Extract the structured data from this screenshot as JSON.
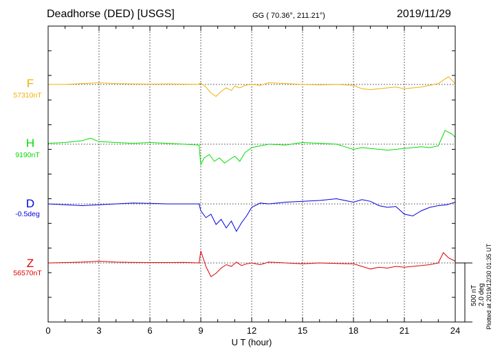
{
  "header": {
    "station": "Deadhorse (DED)  [USGS]",
    "coords": "GG ( 70.36°, 211.21°)",
    "date": "2019/11/29"
  },
  "footer_note": "Plotted at 2019/12/30 01:35 UT",
  "scale": {
    "nt": "500 nT",
    "deg": "2.0 deg"
  },
  "colors": {
    "F": "#f0b000",
    "H": "#00dd00",
    "D": "#0000dd",
    "Z": "#dd0000"
  },
  "chart_data": {
    "type": "line",
    "xlabel": "U T (hour)",
    "xlim": [
      0,
      24
    ],
    "xticks": [
      "0",
      "3",
      "6",
      "9",
      "12",
      "15",
      "18",
      "21",
      "24"
    ],
    "grid": true,
    "series": [
      {
        "name": "F",
        "baseline": "57310nT",
        "color": "#f0b000",
        "x": [
          0,
          1,
          2,
          3,
          4,
          5,
          6,
          7,
          8,
          8.8,
          9,
          9.3,
          9.6,
          9.9,
          10.2,
          10.5,
          10.8,
          11,
          11.3,
          11.6,
          12,
          12.5,
          13,
          14,
          15,
          16,
          17,
          18,
          18.5,
          19,
          19.5,
          20,
          20.5,
          21,
          21.5,
          22,
          22.5,
          23,
          23.3,
          23.6,
          24
        ],
        "values": [
          0,
          0,
          5,
          10,
          5,
          3,
          2,
          3,
          2,
          0,
          8,
          -15,
          -50,
          -70,
          -40,
          -20,
          -35,
          -10,
          -20,
          -5,
          0,
          -5,
          10,
          5,
          0,
          -3,
          0,
          -5,
          -25,
          -30,
          -25,
          -20,
          -15,
          -25,
          -20,
          -15,
          -5,
          5,
          25,
          45,
          5
        ]
      },
      {
        "name": "H",
        "baseline": "9190nT",
        "color": "#00dd00",
        "x": [
          0,
          1,
          2,
          2.5,
          3,
          4,
          5,
          6,
          7,
          8,
          8.9,
          9,
          9.2,
          9.5,
          9.8,
          10.1,
          10.4,
          10.7,
          11,
          11.3,
          11.6,
          12,
          12.5,
          13,
          14,
          15,
          16,
          17,
          17.5,
          18,
          18.5,
          19,
          20,
          21,
          22,
          22.5,
          23,
          23.4,
          23.8,
          24
        ],
        "values": [
          5,
          10,
          20,
          35,
          15,
          10,
          5,
          10,
          5,
          0,
          -5,
          -120,
          -80,
          -60,
          -100,
          -80,
          -110,
          -90,
          -70,
          -100,
          -50,
          -20,
          -10,
          0,
          -5,
          10,
          5,
          0,
          -15,
          -30,
          -20,
          -25,
          -35,
          -25,
          -15,
          -20,
          -10,
          80,
          60,
          40
        ]
      },
      {
        "name": "D",
        "baseline": "-0.5deg",
        "color": "#0000dd",
        "x": [
          0,
          1,
          2,
          3,
          4,
          5,
          6,
          7,
          8,
          8.9,
          9,
          9.3,
          9.6,
          9.9,
          10.2,
          10.5,
          10.8,
          11.1,
          11.4,
          11.7,
          12,
          12.5,
          13,
          14,
          15,
          16,
          17,
          17.5,
          18,
          18.5,
          19,
          19.5,
          20,
          20.5,
          21,
          21.5,
          22,
          22.5,
          23,
          23.5,
          24
        ],
        "values": [
          0,
          -5,
          -10,
          -5,
          0,
          5,
          3,
          0,
          0,
          0,
          -40,
          -80,
          -60,
          -120,
          -90,
          -140,
          -100,
          -160,
          -110,
          -70,
          -20,
          5,
          0,
          10,
          15,
          20,
          30,
          20,
          10,
          25,
          15,
          -10,
          -20,
          -15,
          -60,
          -70,
          -40,
          -20,
          -10,
          -5,
          10
        ]
      },
      {
        "name": "Z",
        "baseline": "56570nT",
        "color": "#dd0000",
        "x": [
          0,
          1,
          2,
          3,
          4,
          5,
          6,
          7,
          8,
          8.9,
          9,
          9.3,
          9.6,
          9.9,
          10.2,
          10.5,
          10.8,
          11.1,
          11.4,
          11.7,
          12,
          12.5,
          13,
          14,
          15,
          16,
          17,
          18,
          18.5,
          19,
          19.5,
          20,
          20.5,
          21,
          21.5,
          22,
          22.5,
          23,
          23.3,
          23.6,
          24
        ],
        "values": [
          0,
          2,
          5,
          10,
          5,
          3,
          2,
          2,
          3,
          0,
          70,
          -20,
          -80,
          -60,
          -30,
          -10,
          -20,
          5,
          -15,
          -5,
          0,
          -10,
          5,
          0,
          -5,
          0,
          -3,
          -5,
          -20,
          -35,
          -25,
          -30,
          -20,
          -25,
          -20,
          -15,
          -10,
          0,
          60,
          30,
          10
        ]
      }
    ]
  }
}
